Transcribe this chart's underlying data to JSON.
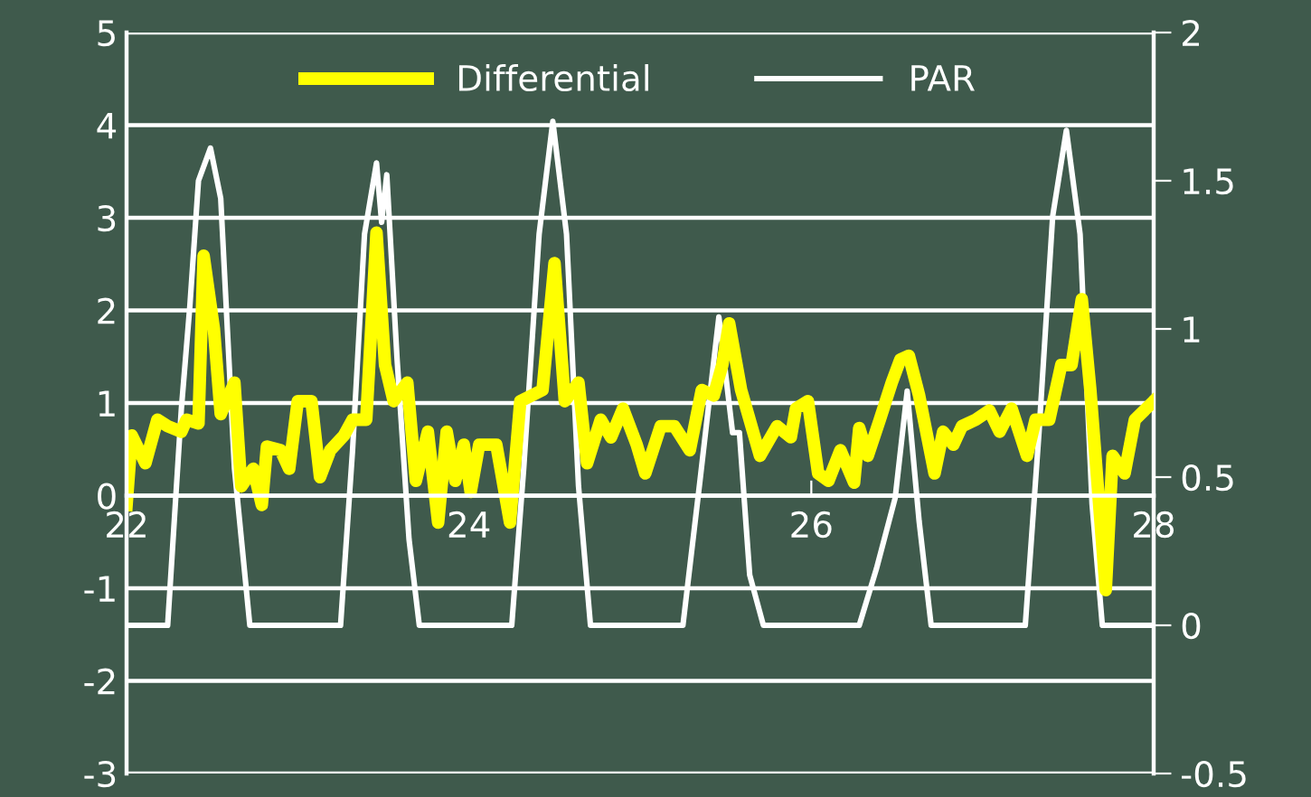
{
  "chart_data": {
    "type": "line",
    "legend": "top",
    "grid": "y",
    "marker": "none",
    "line_style": "solid",
    "xlim": [
      22,
      28
    ],
    "xticks": [
      22,
      24,
      26,
      28
    ],
    "ylim": [
      -3,
      5
    ],
    "yticks": [
      -3,
      -2,
      -1,
      0,
      1,
      2,
      3,
      4,
      5
    ],
    "y2lim": [
      -0.5,
      2
    ],
    "y2ticks": [
      -0.5,
      0,
      0.5,
      1,
      1.5,
      2
    ],
    "series": [
      {
        "name": "Differential",
        "color": "#ffff00",
        "x": [
          22.0,
          22.03,
          22.11,
          22.18,
          22.24,
          22.32,
          22.35,
          22.42,
          22.45,
          22.51,
          22.55,
          22.63,
          22.67,
          22.74,
          22.79,
          22.82,
          22.9,
          22.95,
          23.0,
          23.08,
          23.13,
          23.19,
          23.27,
          23.32,
          23.4,
          23.46,
          23.51,
          23.56,
          23.64,
          23.69,
          23.76,
          23.82,
          23.87,
          23.92,
          23.97,
          24.01,
          24.06,
          24.16,
          24.24,
          24.3,
          24.43,
          24.5,
          24.56,
          24.64,
          24.69,
          24.77,
          24.83,
          24.9,
          24.98,
          25.03,
          25.12,
          25.2,
          25.29,
          25.36,
          25.43,
          25.48,
          25.52,
          25.59,
          25.7,
          25.8,
          25.88,
          25.91,
          25.98,
          26.04,
          26.1,
          26.17,
          26.25,
          26.28,
          26.33,
          26.4,
          26.47,
          26.52,
          26.57,
          26.63,
          26.72,
          26.77,
          26.83,
          26.88,
          26.96,
          27.04,
          27.1,
          27.17,
          27.26,
          27.31,
          27.39,
          27.46,
          27.52,
          27.58,
          27.63,
          27.72,
          27.76,
          27.83,
          27.89,
          28.0
        ],
        "values": [
          -0.1,
          0.65,
          0.35,
          0.82,
          0.75,
          0.69,
          0.82,
          0.78,
          2.59,
          1.8,
          0.88,
          1.22,
          0.1,
          0.29,
          -0.1,
          0.53,
          0.49,
          0.29,
          1.02,
          1.02,
          0.2,
          0.49,
          0.65,
          0.82,
          0.82,
          2.84,
          1.41,
          1.02,
          1.22,
          0.16,
          0.69,
          -0.29,
          0.69,
          0.16,
          0.55,
          0.04,
          0.55,
          0.55,
          -0.29,
          1.02,
          1.14,
          2.51,
          1.02,
          1.22,
          0.35,
          0.82,
          0.63,
          0.94,
          0.55,
          0.24,
          0.75,
          0.75,
          0.49,
          1.14,
          1.08,
          1.41,
          1.86,
          1.14,
          0.43,
          0.75,
          0.63,
          0.94,
          1.02,
          0.24,
          0.16,
          0.49,
          0.14,
          0.73,
          0.43,
          0.82,
          1.22,
          1.47,
          1.51,
          1.08,
          0.24,
          0.69,
          0.55,
          0.75,
          0.82,
          0.92,
          0.69,
          0.94,
          0.43,
          0.82,
          0.82,
          1.41,
          1.41,
          2.12,
          1.14,
          -1.02,
          0.43,
          0.24,
          0.82,
          1.02
        ]
      },
      {
        "name": "PAR",
        "color": "#ffffff",
        "axis": "y2",
        "x": [
          22.0,
          22.24,
          22.32,
          22.37,
          22.42,
          22.49,
          22.55,
          22.63,
          22.72,
          23.25,
          23.32,
          23.39,
          23.46,
          23.49,
          23.52,
          23.58,
          23.65,
          23.71,
          24.25,
          24.32,
          24.41,
          24.49,
          24.57,
          24.64,
          24.71,
          25.25,
          25.35,
          25.46,
          25.54,
          25.58,
          25.64,
          25.72,
          26.28,
          26.38,
          26.49,
          26.56,
          26.63,
          26.7,
          27.25,
          27.33,
          27.41,
          27.49,
          27.57,
          27.64,
          27.7,
          28.0
        ],
        "values": [
          0,
          0,
          0.73,
          1.08,
          1.5,
          1.61,
          1.44,
          0.53,
          0,
          0,
          0.59,
          1.32,
          1.56,
          1.36,
          1.52,
          0.9,
          0.29,
          0,
          0,
          0.53,
          1.32,
          1.7,
          1.32,
          0.47,
          0,
          0,
          0.49,
          1.04,
          0.65,
          0.65,
          0.17,
          0,
          0,
          0.19,
          0.43,
          0.79,
          0.35,
          0,
          0,
          0.65,
          1.38,
          1.67,
          1.32,
          0.41,
          0,
          0
        ]
      }
    ]
  }
}
